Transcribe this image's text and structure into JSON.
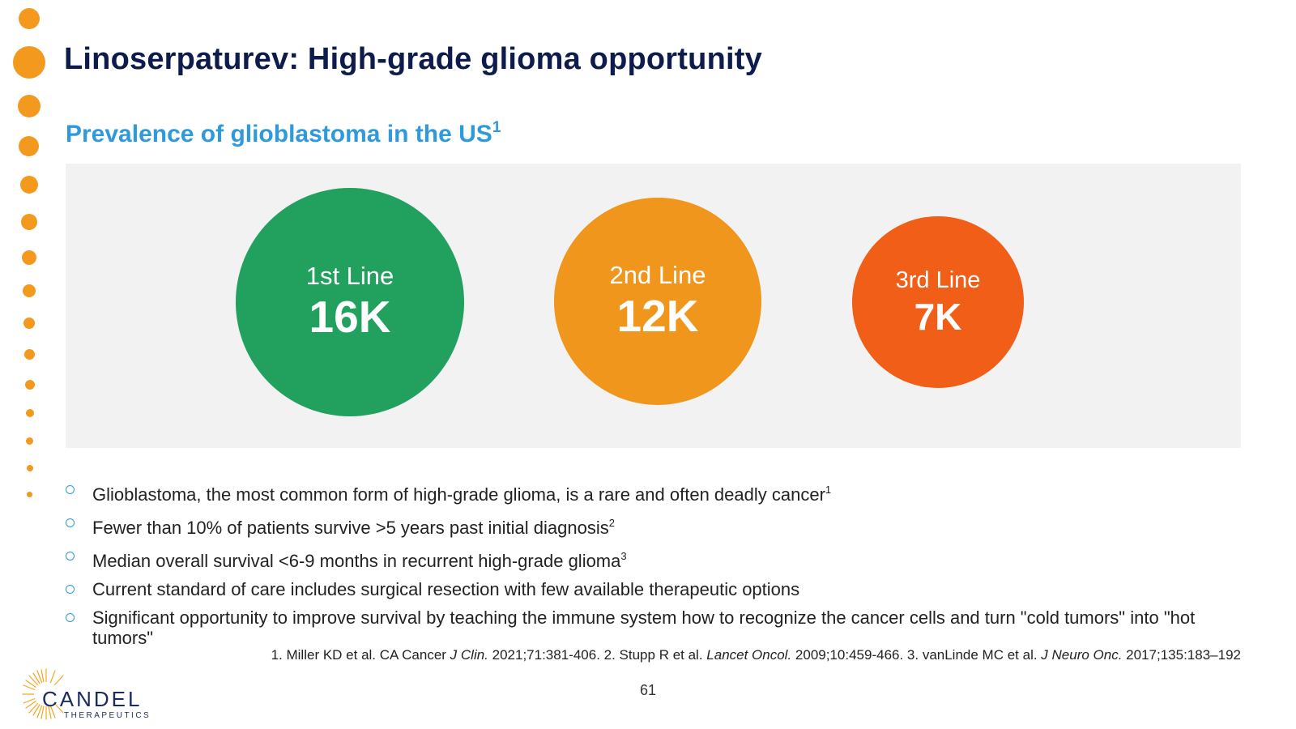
{
  "title": "Linoserpaturev: High-grade glioma opportunity",
  "subtitle": {
    "text": "Prevalence of glioblastoma in the US",
    "ref": "1"
  },
  "prevalence": [
    {
      "label": "1st Line",
      "value": "16K",
      "color": "#22A05E"
    },
    {
      "label": "2nd Line",
      "value": "12K",
      "color": "#F0961D"
    },
    {
      "label": "3rd Line",
      "value": "7K",
      "color": "#F05E18"
    }
  ],
  "bullets": [
    {
      "text": "Glioblastoma, the most common form of high-grade glioma, is a rare and often deadly cancer",
      "ref": "1"
    },
    {
      "text": "Fewer than 10% of patients survive >5 years past initial diagnosis",
      "ref": "2"
    },
    {
      "text": "Median overall survival <6-9 months in recurrent high-grade glioma",
      "ref": "3"
    },
    {
      "text": "Current standard of care includes surgical resection with few available therapeutic options",
      "ref": ""
    },
    {
      "text": "Significant opportunity to improve survival by teaching the immune system how to recognize the cancer cells and turn \"cold tumors\" into \"hot tumors\"",
      "ref": ""
    }
  ],
  "footnote": {
    "p1": "1. Miller KD et al. CA Cancer ",
    "i1": "J Clin.",
    "p2": " 2021;71:381-406. 2. Stupp R et al. ",
    "i2": "Lancet Oncol.",
    "p3": " 2009;10:459-466. 3. vanLinde MC et al. ",
    "i3": "J Neuro Onc.",
    "p4": " 2017;135:183–192"
  },
  "page_number": "61",
  "logo": {
    "name": "CANDEL",
    "sub": "THERAPEUTICS"
  },
  "colors": {
    "accent_dot": "#F39A1E",
    "title": "#0E1B4D",
    "subtitle": "#2F9ADB",
    "panel_bg": "#F2F2F2"
  },
  "icons": {
    "bullet": "hollow-circle-bullet-icon",
    "logo": "sunburst-logo-icon"
  }
}
